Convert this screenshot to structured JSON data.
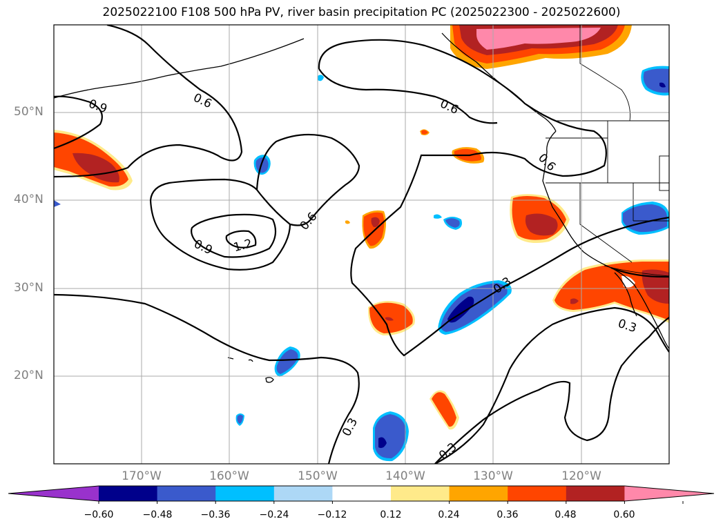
{
  "title": "2025022100 F108 500 hPa PV, river basin precipitation PC (2025022300 - 2025022600)",
  "map": {
    "lat_labels": [
      "50°N",
      "40°N",
      "30°N",
      "20°N"
    ],
    "lon_labels": [
      "170°W",
      "160°W",
      "150°W",
      "140°W",
      "130°W",
      "120°W"
    ],
    "contour_labels": [
      "0.9",
      "0.6",
      "0.6",
      "0.6",
      "0.6",
      "0.9",
      "1.2",
      "0.3",
      "0.3",
      "0.3",
      "0.3"
    ],
    "colors": {
      "pink": "#ff88aa",
      "darkred": "#b22222",
      "orangered": "#ff4500",
      "orange": "#ffa500",
      "yellow": "#ffea8a",
      "white": "#ffffff",
      "lightblue": "#add8f6",
      "cyan": "#00bfff",
      "blue": "#3a5acc",
      "navy": "#00008b",
      "purple": "#9932cc"
    }
  },
  "colorbar": {
    "ticks": [
      "−0.60",
      "−0.48",
      "−0.36",
      "−0.24",
      "−0.12",
      "0.12",
      "0.24",
      "0.36",
      "0.48",
      "0.60"
    ],
    "bins": [
      "#00008b",
      "#3a5acc",
      "#00bfff",
      "#add8f6",
      "#ffffff",
      "#ffea8a",
      "#ffa500",
      "#ff4500",
      "#b22222"
    ],
    "under": "#9932cc",
    "over": "#ff88aa"
  }
}
